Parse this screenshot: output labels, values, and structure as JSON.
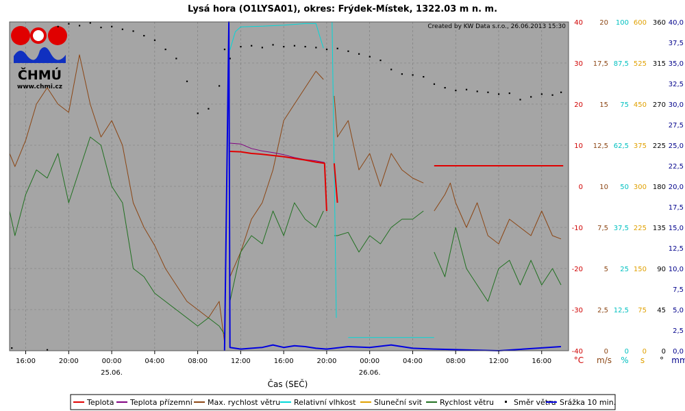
{
  "chart_data": {
    "type": "line",
    "title": "Lysá hora (O1LYSA01), okres: Frýdek-Místek, 1322.03 m n. m.",
    "credit": "Created by KW Data s.r.o., 26.06.2013 15:30",
    "logo": {
      "text": "ČHMÚ",
      "url": "www.chmi.cz"
    },
    "xlabel": "Čas (SEČ)",
    "x_ticks": [
      "16:00",
      "20:00",
      "00:00",
      "04:00",
      "08:00",
      "12:00",
      "16:00",
      "20:00",
      "00:00",
      "04:00",
      "08:00",
      "12:00",
      "16:00"
    ],
    "x_dates": [
      {
        "tick": "00:00",
        "label": "25.06."
      },
      {
        "tick": "00:00",
        "label": "26.06."
      }
    ],
    "x_range_hours": [
      -9.5,
      42.5
    ],
    "axes": [
      {
        "unit": "°C",
        "color": "#d00000",
        "ticks": [
          "40",
          "30",
          "20",
          "10",
          "0",
          "-10",
          "-20",
          "-30",
          "-40"
        ]
      },
      {
        "unit": "m/s",
        "color": "#8b4513",
        "ticks": [
          "20",
          "17,5",
          "15",
          "12,5",
          "10",
          "7,5",
          "5",
          "2,5",
          "0"
        ]
      },
      {
        "unit": "%",
        "color": "#00c0c0",
        "ticks": [
          "100",
          "87,5",
          "75",
          "62,5",
          "50",
          "37,5",
          "25",
          "12,5",
          "0"
        ]
      },
      {
        "unit": "s",
        "color": "#e0a000",
        "ticks": [
          "600",
          "525",
          "450",
          "375",
          "300",
          "225",
          "150",
          "75",
          "0"
        ]
      },
      {
        "unit": "°",
        "color": "#000000",
        "ticks": [
          "360",
          "315",
          "270",
          "225",
          "180",
          "135",
          "90",
          "45",
          "0"
        ]
      },
      {
        "unit": "mm",
        "color": "#00008b",
        "ticks": [
          "40,0",
          "37,5",
          "35,0",
          "32,5",
          "30,0",
          "27,5",
          "25,0",
          "22,5",
          "20,0",
          "17,5",
          "15,0",
          "12,5",
          "10,0",
          "7,5",
          "5,0",
          "2,5",
          "0,0"
        ]
      }
    ],
    "series": [
      {
        "name": "Teplota",
        "color": "#e00000",
        "axis": "°C",
        "width": 2,
        "segments": [
          [
            [
              11,
              8.5
            ],
            [
              12,
              8.4
            ],
            [
              13,
              8.0
            ],
            [
              14,
              7.8
            ],
            [
              15,
              7.5
            ],
            [
              16,
              7.2
            ],
            [
              17,
              6.8
            ],
            [
              18,
              6.4
            ],
            [
              19,
              5.9
            ],
            [
              19.8,
              5.6
            ],
            [
              20,
              -6
            ]
          ],
          [
            [
              20.7,
              5.6
            ],
            [
              21,
              -4
            ]
          ],
          [
            [
              30,
              5
            ],
            [
              42,
              5
            ]
          ]
        ]
      },
      {
        "name": "Teplota přízemní",
        "color": "#800080",
        "axis": "°C",
        "width": 1,
        "segments": [
          [
            [
              11,
              10.5
            ],
            [
              12,
              10.3
            ],
            [
              13,
              9.2
            ],
            [
              14,
              8.6
            ],
            [
              15,
              8.2
            ],
            [
              16,
              7.7
            ],
            [
              17,
              7.0
            ],
            [
              18,
              6.5
            ],
            [
              19,
              6.2
            ],
            [
              19.8,
              5.8
            ]
          ]
        ]
      },
      {
        "name": "Max. rychlost větru",
        "color": "#8b4513",
        "axis": "m/s",
        "width": 1,
        "segments": [
          [
            [
              -9.5,
              12
            ],
            [
              -9,
              11.2
            ],
            [
              -8,
              12.8
            ],
            [
              -7,
              15
            ],
            [
              -6,
              16
            ],
            [
              -5,
              15
            ],
            [
              -4,
              14.5
            ],
            [
              -3,
              18
            ],
            [
              -2,
              15
            ],
            [
              -1,
              13
            ],
            [
              0,
              14
            ],
            [
              1,
              12.5
            ],
            [
              2,
              9
            ],
            [
              3,
              7.5
            ],
            [
              4,
              6.4
            ],
            [
              5,
              5
            ],
            [
              6,
              4
            ],
            [
              7,
              3
            ],
            [
              8,
              2.5
            ],
            [
              9,
              2
            ],
            [
              10,
              3
            ],
            [
              10.5,
              0.5
            ]
          ],
          [
            [
              11,
              4.5
            ],
            [
              12,
              6
            ],
            [
              13,
              8
            ],
            [
              14,
              9
            ],
            [
              15,
              11
            ],
            [
              16,
              14
            ],
            [
              17,
              15
            ],
            [
              18,
              16
            ],
            [
              19,
              17
            ],
            [
              19.7,
              16.5
            ]
          ],
          [
            [
              20.7,
              15.5
            ],
            [
              21,
              13
            ],
            [
              22,
              14
            ],
            [
              23,
              11
            ],
            [
              24,
              12
            ],
            [
              25,
              10
            ],
            [
              26,
              12
            ],
            [
              27,
              11
            ],
            [
              28,
              10.5
            ],
            [
              29,
              10.2
            ]
          ],
          [
            [
              30,
              8.5
            ],
            [
              31,
              9.5
            ],
            [
              31.5,
              10.2
            ],
            [
              32,
              9
            ],
            [
              33,
              7.5
            ],
            [
              34,
              9
            ],
            [
              35,
              7
            ],
            [
              36,
              6.5
            ],
            [
              37,
              8
            ],
            [
              38,
              7.5
            ],
            [
              39,
              7
            ],
            [
              40,
              8.5
            ],
            [
              41,
              7
            ],
            [
              41.8,
              6.8
            ]
          ]
        ]
      },
      {
        "name": "Relativní vlhkost",
        "color": "#00d8d8",
        "axis": "%",
        "width": 1,
        "segments": [
          [
            [
              11,
              91.5
            ],
            [
              11.5,
              97
            ],
            [
              12,
              98.5
            ],
            [
              14,
              98.7
            ],
            [
              16,
              99
            ],
            [
              18,
              99.5
            ],
            [
              19,
              99.5
            ],
            [
              19.7,
              92
            ]
          ],
          [
            [
              19.9,
              8
            ]
          ],
          [
            [
              20.5,
              100
            ],
            [
              20.9,
              10
            ]
          ],
          [
            [
              22,
              4
            ],
            [
              30,
              4
            ]
          ]
        ]
      },
      {
        "name": "Sluneční svit",
        "color": "#e0a000",
        "axis": "s",
        "width": 1,
        "segments": [
          [
            [
              -9.5,
              0
            ],
            [
              42.5,
              0
            ]
          ]
        ]
      },
      {
        "name": "Rychlost větru",
        "color": "#207020",
        "axis": "m/s",
        "width": 1,
        "segments": [
          [
            [
              -9.5,
              8.5
            ],
            [
              -9,
              7
            ],
            [
              -8,
              9.5
            ],
            [
              -7,
              11
            ],
            [
              -6,
              10.5
            ],
            [
              -5,
              12
            ],
            [
              -4,
              9
            ],
            [
              -3,
              11
            ],
            [
              -2,
              13
            ],
            [
              -1,
              12.5
            ],
            [
              0,
              10
            ],
            [
              1,
              9
            ],
            [
              2,
              5
            ],
            [
              3,
              4.5
            ],
            [
              4,
              3.5
            ],
            [
              5,
              3
            ],
            [
              6,
              2.5
            ],
            [
              7,
              2
            ],
            [
              8,
              1.5
            ],
            [
              9,
              2
            ],
            [
              10,
              1.5
            ],
            [
              10.5,
              1
            ]
          ],
          [
            [
              11,
              3
            ],
            [
              12,
              6
            ],
            [
              13,
              7
            ],
            [
              14,
              6.5
            ],
            [
              15,
              8.5
            ],
            [
              16,
              7
            ],
            [
              17,
              9
            ],
            [
              18,
              8
            ],
            [
              19,
              7.5
            ],
            [
              19.7,
              8.5
            ]
          ],
          [
            [
              20.7,
              7
            ],
            [
              21,
              7
            ],
            [
              22,
              7.2
            ],
            [
              23,
              6
            ],
            [
              24,
              7
            ],
            [
              25,
              6.5
            ],
            [
              26,
              7.5
            ],
            [
              27,
              8
            ],
            [
              28,
              8
            ],
            [
              29,
              8.5
            ]
          ],
          [
            [
              30,
              6
            ],
            [
              31,
              4.5
            ],
            [
              32,
              7.5
            ],
            [
              33,
              5
            ],
            [
              34,
              4
            ],
            [
              35,
              3
            ],
            [
              36,
              5
            ],
            [
              37,
              5.5
            ],
            [
              38,
              4
            ],
            [
              39,
              5.5
            ],
            [
              40,
              4
            ],
            [
              41,
              5
            ],
            [
              41.8,
              4
            ]
          ]
        ]
      },
      {
        "name": "Směr větru",
        "color": "#000000",
        "axis": "°",
        "width": 1,
        "points": [
          [
            -9.3,
            3
          ],
          [
            -6,
            1
          ],
          [
            -5,
            355
          ],
          [
            -4,
            358
          ],
          [
            -3,
            356
          ],
          [
            -2,
            359
          ],
          [
            -1,
            354
          ],
          [
            0,
            355
          ],
          [
            1,
            352
          ],
          [
            2,
            350
          ],
          [
            3,
            345
          ],
          [
            4,
            340
          ],
          [
            5,
            330
          ],
          [
            6,
            320
          ],
          [
            7,
            295
          ],
          [
            8,
            260
          ],
          [
            9,
            265
          ],
          [
            10,
            290
          ],
          [
            10.5,
            330
          ],
          [
            11,
            320
          ],
          [
            12,
            333
          ],
          [
            13,
            334
          ],
          [
            14,
            332
          ],
          [
            15,
            335
          ],
          [
            16,
            333
          ],
          [
            17,
            334
          ],
          [
            18,
            333
          ],
          [
            19,
            332
          ],
          [
            20,
            330
          ],
          [
            21,
            331
          ],
          [
            22,
            328
          ],
          [
            23,
            325
          ],
          [
            24,
            322
          ],
          [
            25,
            318
          ],
          [
            26,
            308
          ],
          [
            27,
            303
          ],
          [
            28,
            302
          ],
          [
            29,
            300
          ],
          [
            30,
            292
          ],
          [
            31,
            288
          ],
          [
            32,
            285
          ],
          [
            33,
            286
          ],
          [
            34,
            284
          ],
          [
            35,
            283
          ],
          [
            36,
            281
          ],
          [
            37,
            282
          ],
          [
            38,
            275
          ],
          [
            39,
            278
          ],
          [
            40,
            281
          ],
          [
            41,
            280
          ],
          [
            41.8,
            283
          ]
        ]
      },
      {
        "name": "Srážka 10 min.",
        "color": "#0000e0",
        "axis": "mm",
        "width": 2,
        "segments": [
          [
            [
              10.5,
              0
            ],
            [
              10.9,
              40
            ],
            [
              11,
              0.4
            ],
            [
              12,
              0.2
            ],
            [
              13,
              0.3
            ],
            [
              14,
              0.4
            ],
            [
              15,
              0.7
            ],
            [
              16,
              0.4
            ],
            [
              17,
              0.6
            ],
            [
              18,
              0.5
            ],
            [
              19,
              0.3
            ],
            [
              20,
              0.2
            ],
            [
              22,
              0.5
            ],
            [
              24,
              0.4
            ],
            [
              26,
              0.7
            ],
            [
              28,
              0.3
            ],
            [
              30,
              0.2
            ],
            [
              36,
              0
            ],
            [
              41.8,
              0.5
            ]
          ]
        ]
      }
    ]
  }
}
